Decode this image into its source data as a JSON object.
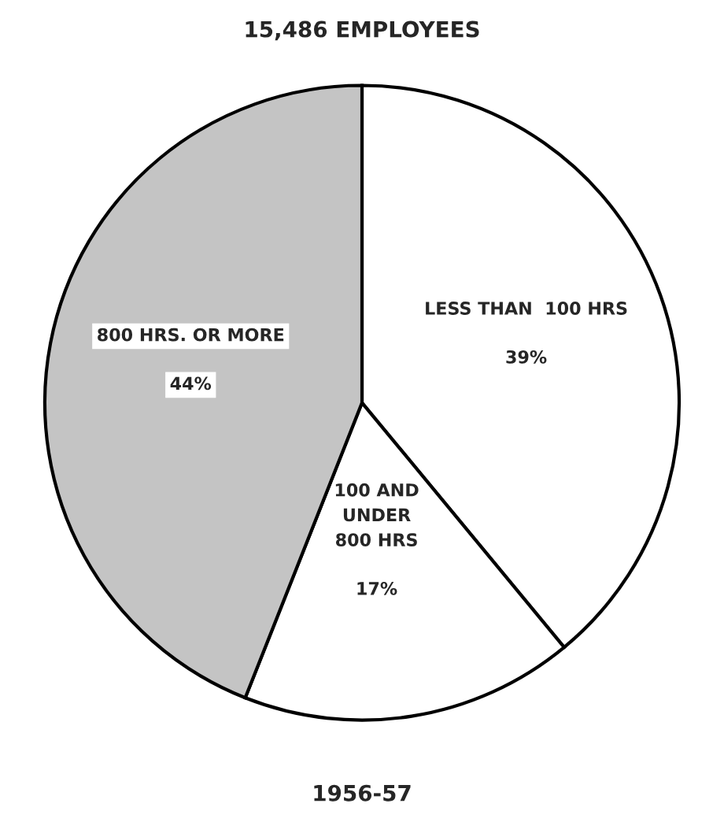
{
  "chart_data": {
    "type": "pie",
    "title": "15,486 EMPLOYEES",
    "categories": [
      "LESS THAN  100 HRS",
      "100 AND\nUNDER\n800 HRS",
      "800 HRS. OR MORE"
    ],
    "values": [
      39,
      17,
      44
    ],
    "colors": [
      "#ffffff",
      "#ffffff",
      "#c4c4c4"
    ],
    "value_labels": [
      "39%",
      "17%",
      "44%"
    ],
    "annotations": [
      "1956-57"
    ]
  }
}
